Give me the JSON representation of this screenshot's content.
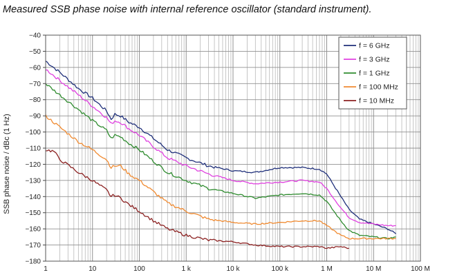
{
  "chart_data": {
    "type": "line",
    "title": "Measured SSB phase noise with internal reference oscillator (standard instrument).",
    "ylabel": "SSB phase noise / dBc (1 Hz)",
    "xlabel": "",
    "x_scale": "log",
    "xlim": [
      1,
      100000000
    ],
    "ylim": [
      -180,
      -40
    ],
    "x_ticks": [
      1,
      10,
      100,
      1000,
      10000,
      100000,
      1000000,
      10000000,
      100000000
    ],
    "x_tick_labels": [
      "1",
      "10",
      "100",
      "1 k",
      "10 k",
      "100 k",
      "1 M",
      "10 M",
      "100 M"
    ],
    "y_ticks": [
      -40,
      -50,
      -60,
      -70,
      -80,
      -90,
      -100,
      -110,
      -120,
      -130,
      -140,
      -150,
      -160,
      -170,
      -180
    ],
    "y_tick_labels": [
      "−40",
      "−50",
      "−60",
      "−70",
      "−80",
      "−90",
      "−100",
      "−110",
      "−120",
      "−130",
      "−140",
      "−150",
      "−160",
      "−170",
      "−180"
    ],
    "grid": true,
    "legend_position": "top-right",
    "series": [
      {
        "name": "f = 6 GHz",
        "color": "#1f2f7a",
        "points": [
          [
            1,
            -56
          ],
          [
            2,
            -63
          ],
          [
            5,
            -73
          ],
          [
            10,
            -79
          ],
          [
            20,
            -87
          ],
          [
            25,
            -92
          ],
          [
            30,
            -89
          ],
          [
            40,
            -90
          ],
          [
            60,
            -94
          ],
          [
            100,
            -97
          ],
          [
            200,
            -104
          ],
          [
            400,
            -111
          ],
          [
            1000,
            -116
          ],
          [
            3000,
            -121
          ],
          [
            10000,
            -124
          ],
          [
            30000,
            -125
          ],
          [
            100000,
            -122
          ],
          [
            300000,
            -122
          ],
          [
            700000,
            -123
          ],
          [
            1000000,
            -126
          ],
          [
            2000000,
            -140
          ],
          [
            3000000,
            -148
          ],
          [
            5000000,
            -154
          ],
          [
            10000000,
            -157
          ],
          [
            20000000,
            -160
          ],
          [
            30000000,
            -163
          ]
        ]
      },
      {
        "name": "f = 3 GHz",
        "color": "#e040e0",
        "points": [
          [
            1,
            -61
          ],
          [
            2,
            -68
          ],
          [
            5,
            -77
          ],
          [
            10,
            -84
          ],
          [
            20,
            -91
          ],
          [
            25,
            -95
          ],
          [
            30,
            -93
          ],
          [
            40,
            -94
          ],
          [
            60,
            -98
          ],
          [
            100,
            -102
          ],
          [
            200,
            -109
          ],
          [
            400,
            -116
          ],
          [
            1000,
            -121
          ],
          [
            3000,
            -126
          ],
          [
            10000,
            -130
          ],
          [
            30000,
            -132
          ],
          [
            100000,
            -131
          ],
          [
            300000,
            -130
          ],
          [
            700000,
            -131
          ],
          [
            1000000,
            -135
          ],
          [
            2000000,
            -147
          ],
          [
            3000000,
            -153
          ],
          [
            5000000,
            -156
          ],
          [
            10000000,
            -157
          ],
          [
            20000000,
            -158
          ],
          [
            30000000,
            -158
          ]
        ]
      },
      {
        "name": "f = 1 GHz",
        "color": "#2e8b2e",
        "points": [
          [
            1,
            -70
          ],
          [
            2,
            -77
          ],
          [
            5,
            -86
          ],
          [
            10,
            -93
          ],
          [
            20,
            -99
          ],
          [
            25,
            -104
          ],
          [
            30,
            -102
          ],
          [
            40,
            -103
          ],
          [
            60,
            -107
          ],
          [
            100,
            -111
          ],
          [
            200,
            -118
          ],
          [
            400,
            -125
          ],
          [
            1000,
            -130
          ],
          [
            3000,
            -135
          ],
          [
            10000,
            -138
          ],
          [
            30000,
            -141
          ],
          [
            100000,
            -139
          ],
          [
            300000,
            -138
          ],
          [
            700000,
            -139
          ],
          [
            1000000,
            -143
          ],
          [
            2000000,
            -155
          ],
          [
            3000000,
            -161
          ],
          [
            5000000,
            -164
          ],
          [
            10000000,
            -165
          ],
          [
            20000000,
            -166
          ],
          [
            30000000,
            -165
          ]
        ]
      },
      {
        "name": "f = 100 MHz",
        "color": "#f08a30",
        "points": [
          [
            1,
            -90
          ],
          [
            2,
            -97
          ],
          [
            5,
            -106
          ],
          [
            10,
            -111
          ],
          [
            20,
            -117
          ],
          [
            25,
            -122
          ],
          [
            30,
            -121
          ],
          [
            40,
            -121
          ],
          [
            60,
            -126
          ],
          [
            100,
            -130
          ],
          [
            200,
            -137
          ],
          [
            400,
            -144
          ],
          [
            1000,
            -149
          ],
          [
            3000,
            -154
          ],
          [
            10000,
            -156
          ],
          [
            30000,
            -157
          ],
          [
            100000,
            -156
          ],
          [
            300000,
            -155
          ],
          [
            700000,
            -155
          ],
          [
            1000000,
            -158
          ],
          [
            2000000,
            -164
          ],
          [
            3000000,
            -166
          ],
          [
            5000000,
            -166
          ],
          [
            10000000,
            -166
          ],
          [
            20000000,
            -166
          ],
          [
            30000000,
            -166
          ]
        ]
      },
      {
        "name": "f = 10 MHz",
        "color": "#8b2020",
        "points": [
          [
            1,
            -111
          ],
          [
            1.5,
            -112
          ],
          [
            2,
            -117
          ],
          [
            5,
            -125
          ],
          [
            10,
            -130
          ],
          [
            20,
            -136
          ],
          [
            25,
            -140
          ],
          [
            30,
            -139
          ],
          [
            40,
            -141
          ],
          [
            60,
            -145
          ],
          [
            100,
            -149
          ],
          [
            200,
            -155
          ],
          [
            400,
            -160
          ],
          [
            1000,
            -164
          ],
          [
            3000,
            -167
          ],
          [
            10000,
            -168
          ],
          [
            30000,
            -170
          ],
          [
            100000,
            -171
          ],
          [
            300000,
            -171
          ],
          [
            700000,
            -171
          ],
          [
            1000000,
            -172
          ],
          [
            2000000,
            -171
          ],
          [
            3000000,
            -172
          ]
        ]
      }
    ]
  }
}
